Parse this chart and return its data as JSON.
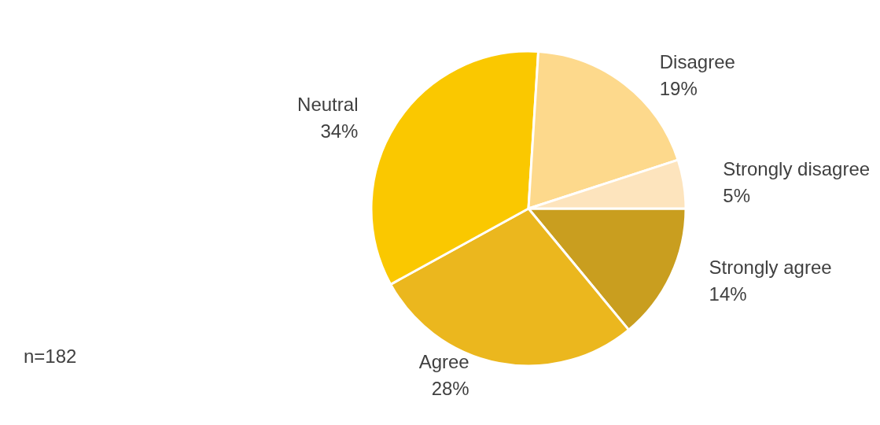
{
  "chart_data": {
    "type": "pie",
    "categories": [
      "Strongly agree",
      "Agree",
      "Neutral",
      "Disagree",
      "Strongly disagree"
    ],
    "values": [
      14,
      28,
      34,
      19,
      5
    ],
    "value_labels": [
      "14%",
      "28%",
      "34%",
      "19%",
      "5%"
    ],
    "colors": [
      "#c99e1f",
      "#ebb71e",
      "#fac800",
      "#fdd98c",
      "#fde4bd"
    ],
    "annotations": [
      "n=182"
    ]
  }
}
